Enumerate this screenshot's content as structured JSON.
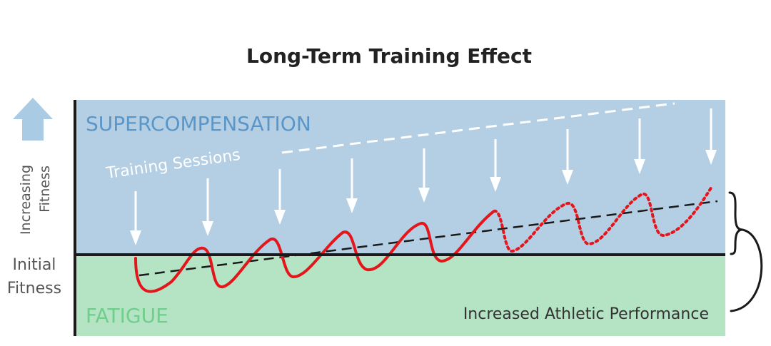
{
  "title": "Long-Term Training Effect",
  "zones": {
    "upper_label": "SUPERCOMPENSATION",
    "lower_label": "FATIGUE"
  },
  "labels": {
    "training_sessions": "Training Sessions",
    "y_axis_line1": "Increasing",
    "y_axis_line2": "Fitness",
    "initial_line1": "Initial",
    "initial_line2": "Fitness",
    "performance": "Increased Athletic Performance"
  },
  "colors": {
    "supercompensation_bg": "#b4cfe4",
    "fatigue_bg": "#b4e4c4",
    "zone_label_upper": "#5b96c8",
    "zone_label_lower": "#6fce8c",
    "curve": "#e3161b",
    "arrow": "#ffffff",
    "up_arrow": "#a9cbe4",
    "axis": "#1a1a1a",
    "title": "#222222",
    "side_text": "#555555"
  }
}
